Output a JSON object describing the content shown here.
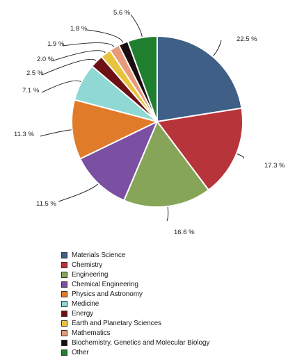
{
  "chart_data": {
    "type": "pie",
    "slices": [
      {
        "label": "Materials Science",
        "value": 22.5,
        "value_label": "22.5 %",
        "color": "#3f5f86"
      },
      {
        "label": "Chemistry",
        "value": 17.3,
        "value_label": "17.3 %",
        "color": "#b8343b"
      },
      {
        "label": "Engineering",
        "value": 16.6,
        "value_label": "16.6 %",
        "color": "#86a558"
      },
      {
        "label": "Chemical Engineering",
        "value": 11.5,
        "value_label": "11.5 %",
        "color": "#7b4fa1"
      },
      {
        "label": "Physics and Astronomy",
        "value": 11.3,
        "value_label": "11.3 %",
        "color": "#e07b2a"
      },
      {
        "label": "Medicine",
        "value": 7.1,
        "value_label": "7.1 %",
        "color": "#8fd8d4"
      },
      {
        "label": "Energy",
        "value": 2.5,
        "value_label": "2.5 %",
        "color": "#6e1116"
      },
      {
        "label": "Earth and Planetary Sciences",
        "value": 2.0,
        "value_label": "2.0 %",
        "color": "#e8c43c"
      },
      {
        "label": "Mathematics",
        "value": 1.9,
        "value_label": "1.9 %",
        "color": "#e79a7c"
      },
      {
        "label": "Biochemistry, Genetics and Molecular Biology",
        "value": 1.8,
        "value_label": "1.8 %",
        "color": "#1a0d10"
      },
      {
        "label": "Other",
        "value": 5.6,
        "value_label": "5.6 %",
        "color": "#1f7f2e"
      }
    ],
    "start": "12 o'clock",
    "direction": "clockwise",
    "legend_position": "bottom"
  }
}
